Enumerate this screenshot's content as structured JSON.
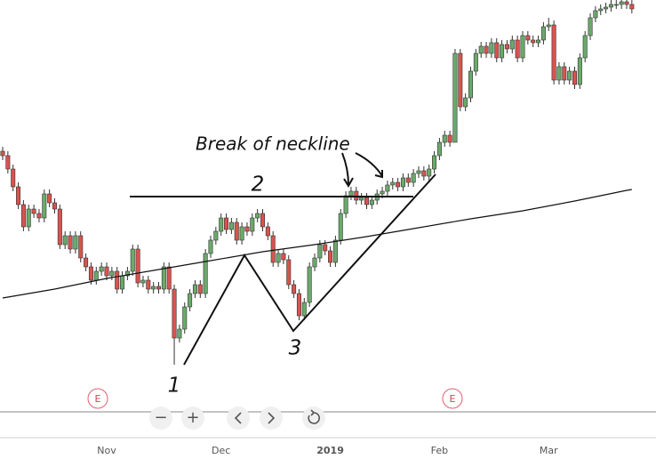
{
  "chart_data": {
    "type": "candlestick",
    "categories": [
      null,
      null,
      null,
      null,
      null,
      null,
      null,
      null,
      null,
      null,
      null,
      null,
      null,
      null,
      null,
      null,
      null,
      null,
      null,
      null,
      "Nov",
      null,
      null,
      null,
      null,
      null,
      null,
      null,
      null,
      null,
      null,
      null,
      null,
      null,
      null,
      null,
      null,
      null,
      null,
      null,
      null,
      null,
      "Dec",
      null,
      null,
      null,
      null,
      null,
      null,
      null,
      null,
      null,
      null,
      null,
      null,
      null,
      null,
      null,
      null,
      null,
      null,
      null,
      null,
      "2019",
      null,
      null,
      null,
      null,
      null,
      null,
      null,
      null,
      null,
      null,
      null,
      null,
      null,
      null,
      null,
      null,
      null,
      null,
      null,
      null,
      "Feb",
      null,
      null,
      null,
      null,
      null,
      null,
      null,
      null,
      null,
      null,
      null,
      null,
      null,
      null,
      null,
      null,
      null,
      null,
      null,
      null,
      "Mar",
      null,
      null,
      null,
      null,
      null,
      null,
      null,
      null,
      null,
      null,
      null,
      null,
      null,
      null,
      null,
      null
    ],
    "open": [
      330,
      325,
      310,
      290,
      270,
      245,
      265,
      260,
      255,
      282,
      272,
      265,
      225,
      235,
      220,
      235,
      210,
      200,
      185,
      195,
      200,
      190,
      195,
      175,
      190,
      195,
      220,
      182,
      185,
      175,
      178,
      175,
      200,
      175,
      120,
      130,
      155,
      170,
      180,
      170,
      215,
      230,
      240,
      255,
      242,
      250,
      230,
      245,
      240,
      255,
      260,
      245,
      235,
      205,
      215,
      208,
      180,
      170,
      145,
      160,
      200,
      210,
      225,
      218,
      205,
      230,
      260,
      280,
      285,
      275,
      278,
      270,
      275,
      282,
      285,
      292,
      295,
      290,
      300,
      295,
      305,
      308,
      302,
      310,
      325,
      340,
      348,
      340,
      440,
      380,
      390,
      420,
      440,
      448,
      440,
      452,
      435,
      450,
      445,
      455,
      435,
      460,
      455,
      452,
      455,
      470,
      472,
      410,
      425,
      410,
      420,
      405,
      435,
      460,
      480,
      488,
      490,
      492,
      495,
      495,
      498,
      495
    ],
    "high": [
      335,
      330,
      315,
      295,
      275,
      270,
      270,
      265,
      287,
      287,
      277,
      270,
      240,
      240,
      240,
      240,
      215,
      205,
      200,
      205,
      205,
      200,
      200,
      195,
      200,
      225,
      225,
      190,
      190,
      183,
      183,
      205,
      205,
      180,
      135,
      160,
      175,
      185,
      185,
      220,
      235,
      245,
      260,
      260,
      255,
      255,
      250,
      250,
      260,
      265,
      265,
      250,
      240,
      220,
      220,
      213,
      185,
      175,
      165,
      205,
      215,
      230,
      230,
      223,
      235,
      265,
      285,
      290,
      290,
      283,
      283,
      280,
      287,
      290,
      297,
      300,
      300,
      305,
      305,
      310,
      313,
      313,
      315,
      330,
      345,
      353,
      353,
      445,
      445,
      395,
      425,
      445,
      453,
      453,
      457,
      457,
      455,
      455,
      460,
      460,
      465,
      465,
      460,
      460,
      475,
      480,
      477,
      430,
      430,
      425,
      425,
      440,
      465,
      485,
      493,
      495,
      497,
      500,
      500,
      503,
      503,
      500
    ],
    "low": [
      320,
      305,
      285,
      265,
      240,
      240,
      255,
      250,
      250,
      267,
      260,
      220,
      220,
      215,
      215,
      205,
      195,
      180,
      180,
      190,
      185,
      185,
      170,
      170,
      185,
      190,
      177,
      177,
      170,
      170,
      170,
      170,
      170,
      90,
      115,
      125,
      150,
      165,
      165,
      165,
      210,
      225,
      235,
      237,
      237,
      225,
      225,
      235,
      235,
      250,
      240,
      230,
      200,
      200,
      203,
      175,
      165,
      140,
      140,
      155,
      195,
      205,
      213,
      200,
      200,
      225,
      255,
      275,
      270,
      270,
      265,
      265,
      270,
      277,
      280,
      287,
      285,
      285,
      290,
      290,
      300,
      297,
      297,
      305,
      320,
      335,
      335,
      343,
      375,
      375,
      385,
      415,
      435,
      435,
      435,
      430,
      430,
      440,
      440,
      430,
      430,
      450,
      447,
      447,
      450,
      465,
      405,
      405,
      405,
      405,
      400,
      400,
      430,
      455,
      475,
      483,
      485,
      487,
      490,
      490,
      490,
      485
    ],
    "close": [
      325,
      310,
      290,
      270,
      245,
      265,
      260,
      255,
      282,
      272,
      265,
      225,
      235,
      220,
      235,
      210,
      200,
      185,
      195,
      200,
      190,
      195,
      175,
      190,
      195,
      220,
      182,
      185,
      175,
      178,
      175,
      200,
      175,
      120,
      130,
      155,
      170,
      180,
      170,
      215,
      230,
      240,
      255,
      242,
      250,
      230,
      245,
      240,
      255,
      260,
      245,
      235,
      205,
      215,
      208,
      180,
      170,
      145,
      160,
      200,
      210,
      225,
      218,
      205,
      230,
      260,
      280,
      285,
      275,
      278,
      270,
      275,
      282,
      285,
      292,
      295,
      290,
      300,
      295,
      305,
      308,
      302,
      310,
      325,
      340,
      348,
      340,
      440,
      380,
      390,
      420,
      440,
      448,
      440,
      452,
      435,
      450,
      445,
      455,
      435,
      460,
      455,
      452,
      455,
      470,
      472,
      410,
      425,
      410,
      420,
      405,
      435,
      460,
      480,
      488,
      490,
      492,
      495,
      495,
      498,
      495,
      490
    ],
    "up_color": "#6aaa6a",
    "down_color": "#d9534f",
    "ylim": [
      40,
      500
    ],
    "moving_average": {
      "x": [
        0,
        10,
        20,
        30,
        40,
        50,
        60,
        70,
        80,
        90,
        100,
        110,
        120,
        121
      ],
      "values": [
        165,
        175,
        187,
        197,
        207,
        217,
        225,
        234,
        244,
        254,
        263,
        274,
        286,
        287
      ],
      "color": "#111111"
    },
    "annotations": {
      "title": "Break of neckline",
      "points": [
        "1",
        "2",
        "3"
      ]
    },
    "events": [
      "E",
      "E"
    ]
  },
  "toolbar": {
    "zoom_out": "−",
    "zoom_in": "+"
  }
}
